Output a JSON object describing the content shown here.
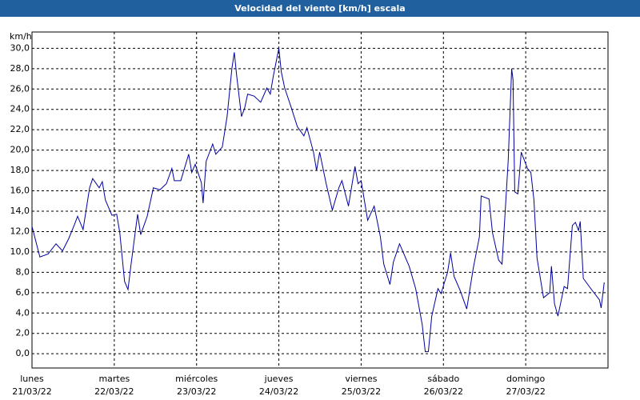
{
  "chart_data": {
    "type": "line",
    "title": "Velocidad del viento [km/h] escala",
    "y_label": "km/h",
    "xlim": [
      0,
      168
    ],
    "ylim": [
      -1.4,
      31.6
    ],
    "grid": true,
    "xticks": [
      {
        "value": 0,
        "label": "lunes",
        "date": "21/03/22"
      },
      {
        "value": 24,
        "label": "martes",
        "date": "22/03/22"
      },
      {
        "value": 48,
        "label": "miércoles",
        "date": "23/03/22"
      },
      {
        "value": 72,
        "label": "jueves",
        "date": "24/03/22"
      },
      {
        "value": 96,
        "label": "viernes",
        "date": "25/03/22"
      },
      {
        "value": 120,
        "label": "sábado",
        "date": "26/03/22"
      },
      {
        "value": 144,
        "label": "domingo",
        "date": "27/03/22"
      }
    ],
    "yticks": [
      {
        "value": 0,
        "label": "0,0"
      },
      {
        "value": 2,
        "label": "2,0"
      },
      {
        "value": 4,
        "label": "4,0"
      },
      {
        "value": 6,
        "label": "6,0"
      },
      {
        "value": 8,
        "label": "8,0"
      },
      {
        "value": 10,
        "label": "10,0"
      },
      {
        "value": 12,
        "label": "12,0"
      },
      {
        "value": 14,
        "label": "14,0"
      },
      {
        "value": 16,
        "label": "16,0"
      },
      {
        "value": 18,
        "label": "18,0"
      },
      {
        "value": 20,
        "label": "20,0"
      },
      {
        "value": 22,
        "label": "22,0"
      },
      {
        "value": 24,
        "label": "24,0"
      },
      {
        "value": 26,
        "label": "26,0"
      },
      {
        "value": 28,
        "label": "28,0"
      },
      {
        "value": 30,
        "label": "30,0"
      }
    ],
    "series": [
      {
        "color": "#0000a0",
        "x": [
          0,
          2.3,
          4.7,
          7,
          8.9,
          10.7,
          12.4,
          13.3,
          14.9,
          16.8,
          17.7,
          19.6,
          20.5,
          21.4,
          23.3,
          24.7,
          25.6,
          27,
          28,
          28.9,
          30.8,
          31.7,
          33.6,
          35.4,
          37.3,
          39.2,
          40.8,
          41.5,
          43.4,
          45.7,
          46.6,
          47.6,
          49.4,
          49.9,
          50.8,
          52.7,
          53.6,
          55.5,
          56.9,
          58.3,
          59,
          59.7,
          61.1,
          62,
          62.9,
          64.8,
          66.7,
          68.5,
          69.5,
          70.4,
          72,
          72.7,
          73.7,
          75.5,
          77.4,
          79.3,
          80.2,
          82.1,
          83,
          83.9,
          85.8,
          87.6,
          89.5,
          90.4,
          92.3,
          94.2,
          95.1,
          96,
          97.9,
          99.8,
          101.6,
          102.6,
          104.4,
          105.4,
          107.2,
          110,
          111.9,
          113.8,
          114.7,
          115.6,
          116.6,
          118.4,
          119.3,
          121.2,
          122.1,
          123.1,
          124.9,
          126.8,
          128.7,
          130.5,
          131,
          133.3,
          134.3,
          136.1,
          137.1,
          138.9,
          139.9,
          140.3,
          140.8,
          141.7,
          142.7,
          144.5,
          145.5,
          146.4,
          147.3,
          149.2,
          151,
          151.5,
          152.4,
          153.4,
          155.2,
          156.2,
          157.6,
          158.5,
          159.4,
          159.9,
          160.8,
          163.2,
          165.5,
          166,
          166.9
        ],
        "values": [
          12.5,
          9.5,
          9.8,
          10.8,
          10.1,
          11.3,
          12.7,
          13.5,
          12.2,
          16.3,
          17.2,
          16.3,
          16.9,
          15.1,
          13.6,
          13.7,
          11.9,
          7.1,
          6.3,
          8.8,
          13.7,
          11.7,
          13.5,
          16.3,
          16.1,
          16.7,
          18.2,
          17.0,
          17.0,
          19.6,
          17.8,
          18.6,
          16.8,
          14.8,
          18.9,
          20.6,
          19.6,
          20.3,
          23.3,
          28.0,
          29.6,
          27.3,
          23.3,
          24.1,
          25.5,
          25.3,
          24.7,
          26.1,
          25.5,
          27.3,
          30.0,
          27.7,
          26.1,
          24.3,
          22.3,
          21.4,
          22.2,
          19.8,
          18.0,
          19.8,
          16.7,
          14.1,
          16.3,
          17.0,
          14.5,
          18.4,
          16.7,
          17.0,
          13.1,
          14.5,
          11.5,
          8.8,
          6.8,
          9.0,
          10.8,
          8.6,
          6.4,
          2.9,
          0.2,
          0.2,
          3.7,
          6.4,
          5.9,
          8.0,
          9.9,
          7.6,
          6.2,
          4.4,
          8.4,
          11.5,
          15.5,
          15.2,
          11.9,
          9.2,
          8.8,
          19.0,
          28.0,
          26.9,
          15.9,
          15.7,
          19.8,
          18.2,
          17.8,
          15.1,
          9.4,
          5.5,
          6.0,
          8.6,
          4.9,
          3.7,
          6.6,
          6.4,
          12.6,
          12.9,
          12.1,
          13.0,
          7.4,
          6.3,
          5.3,
          4.5,
          7.0
        ]
      }
    ]
  }
}
